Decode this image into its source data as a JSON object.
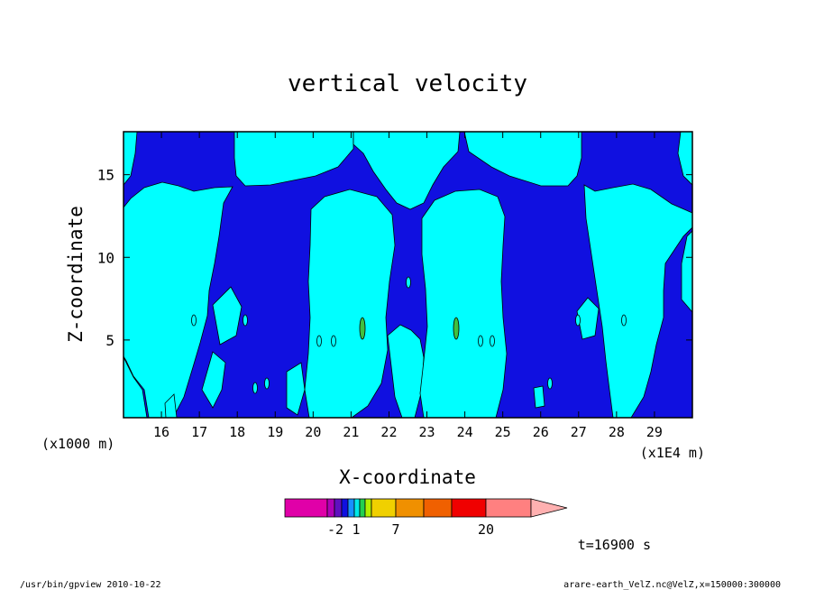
{
  "chart_data": {
    "type": "heatmap",
    "title": "vertical velocity",
    "xlabel": "X-coordinate",
    "ylabel": "Z-coordinate",
    "x_unit_left": "(x1000 m)",
    "x_unit_right": "(x1E4 m)",
    "x_ticks": [
      "16",
      "17",
      "18",
      "19",
      "20",
      "21",
      "22",
      "23",
      "24",
      "25",
      "26",
      "27",
      "28",
      "29"
    ],
    "y_ticks": [
      "5",
      "10",
      "15"
    ],
    "xlim": [
      15.0,
      30.0
    ],
    "ylim": [
      0.3,
      17.6
    ],
    "colorbar": {
      "tick_labels": [
        "-2",
        "1",
        "7",
        "20"
      ],
      "colors": [
        "#e000a8",
        "#b000b8",
        "#6010c0",
        "#1010e0",
        "#1890ff",
        "#00e8e8",
        "#20d050",
        "#b0f000",
        "#f0d000",
        "#f09000",
        "#f06000",
        "#f00000",
        "#ff8080",
        "#ffb0b0"
      ]
    },
    "time_label": "t=16900 s"
  },
  "footer": {
    "left": "/usr/bin/gpview   2010-10-22",
    "right": "arare-earth_VelZ.nc@VelZ,x=150000:300000"
  },
  "colors": {
    "negative": "#1010e0",
    "weak_positive": "#00ffff",
    "updraft_core": "#40c040"
  }
}
